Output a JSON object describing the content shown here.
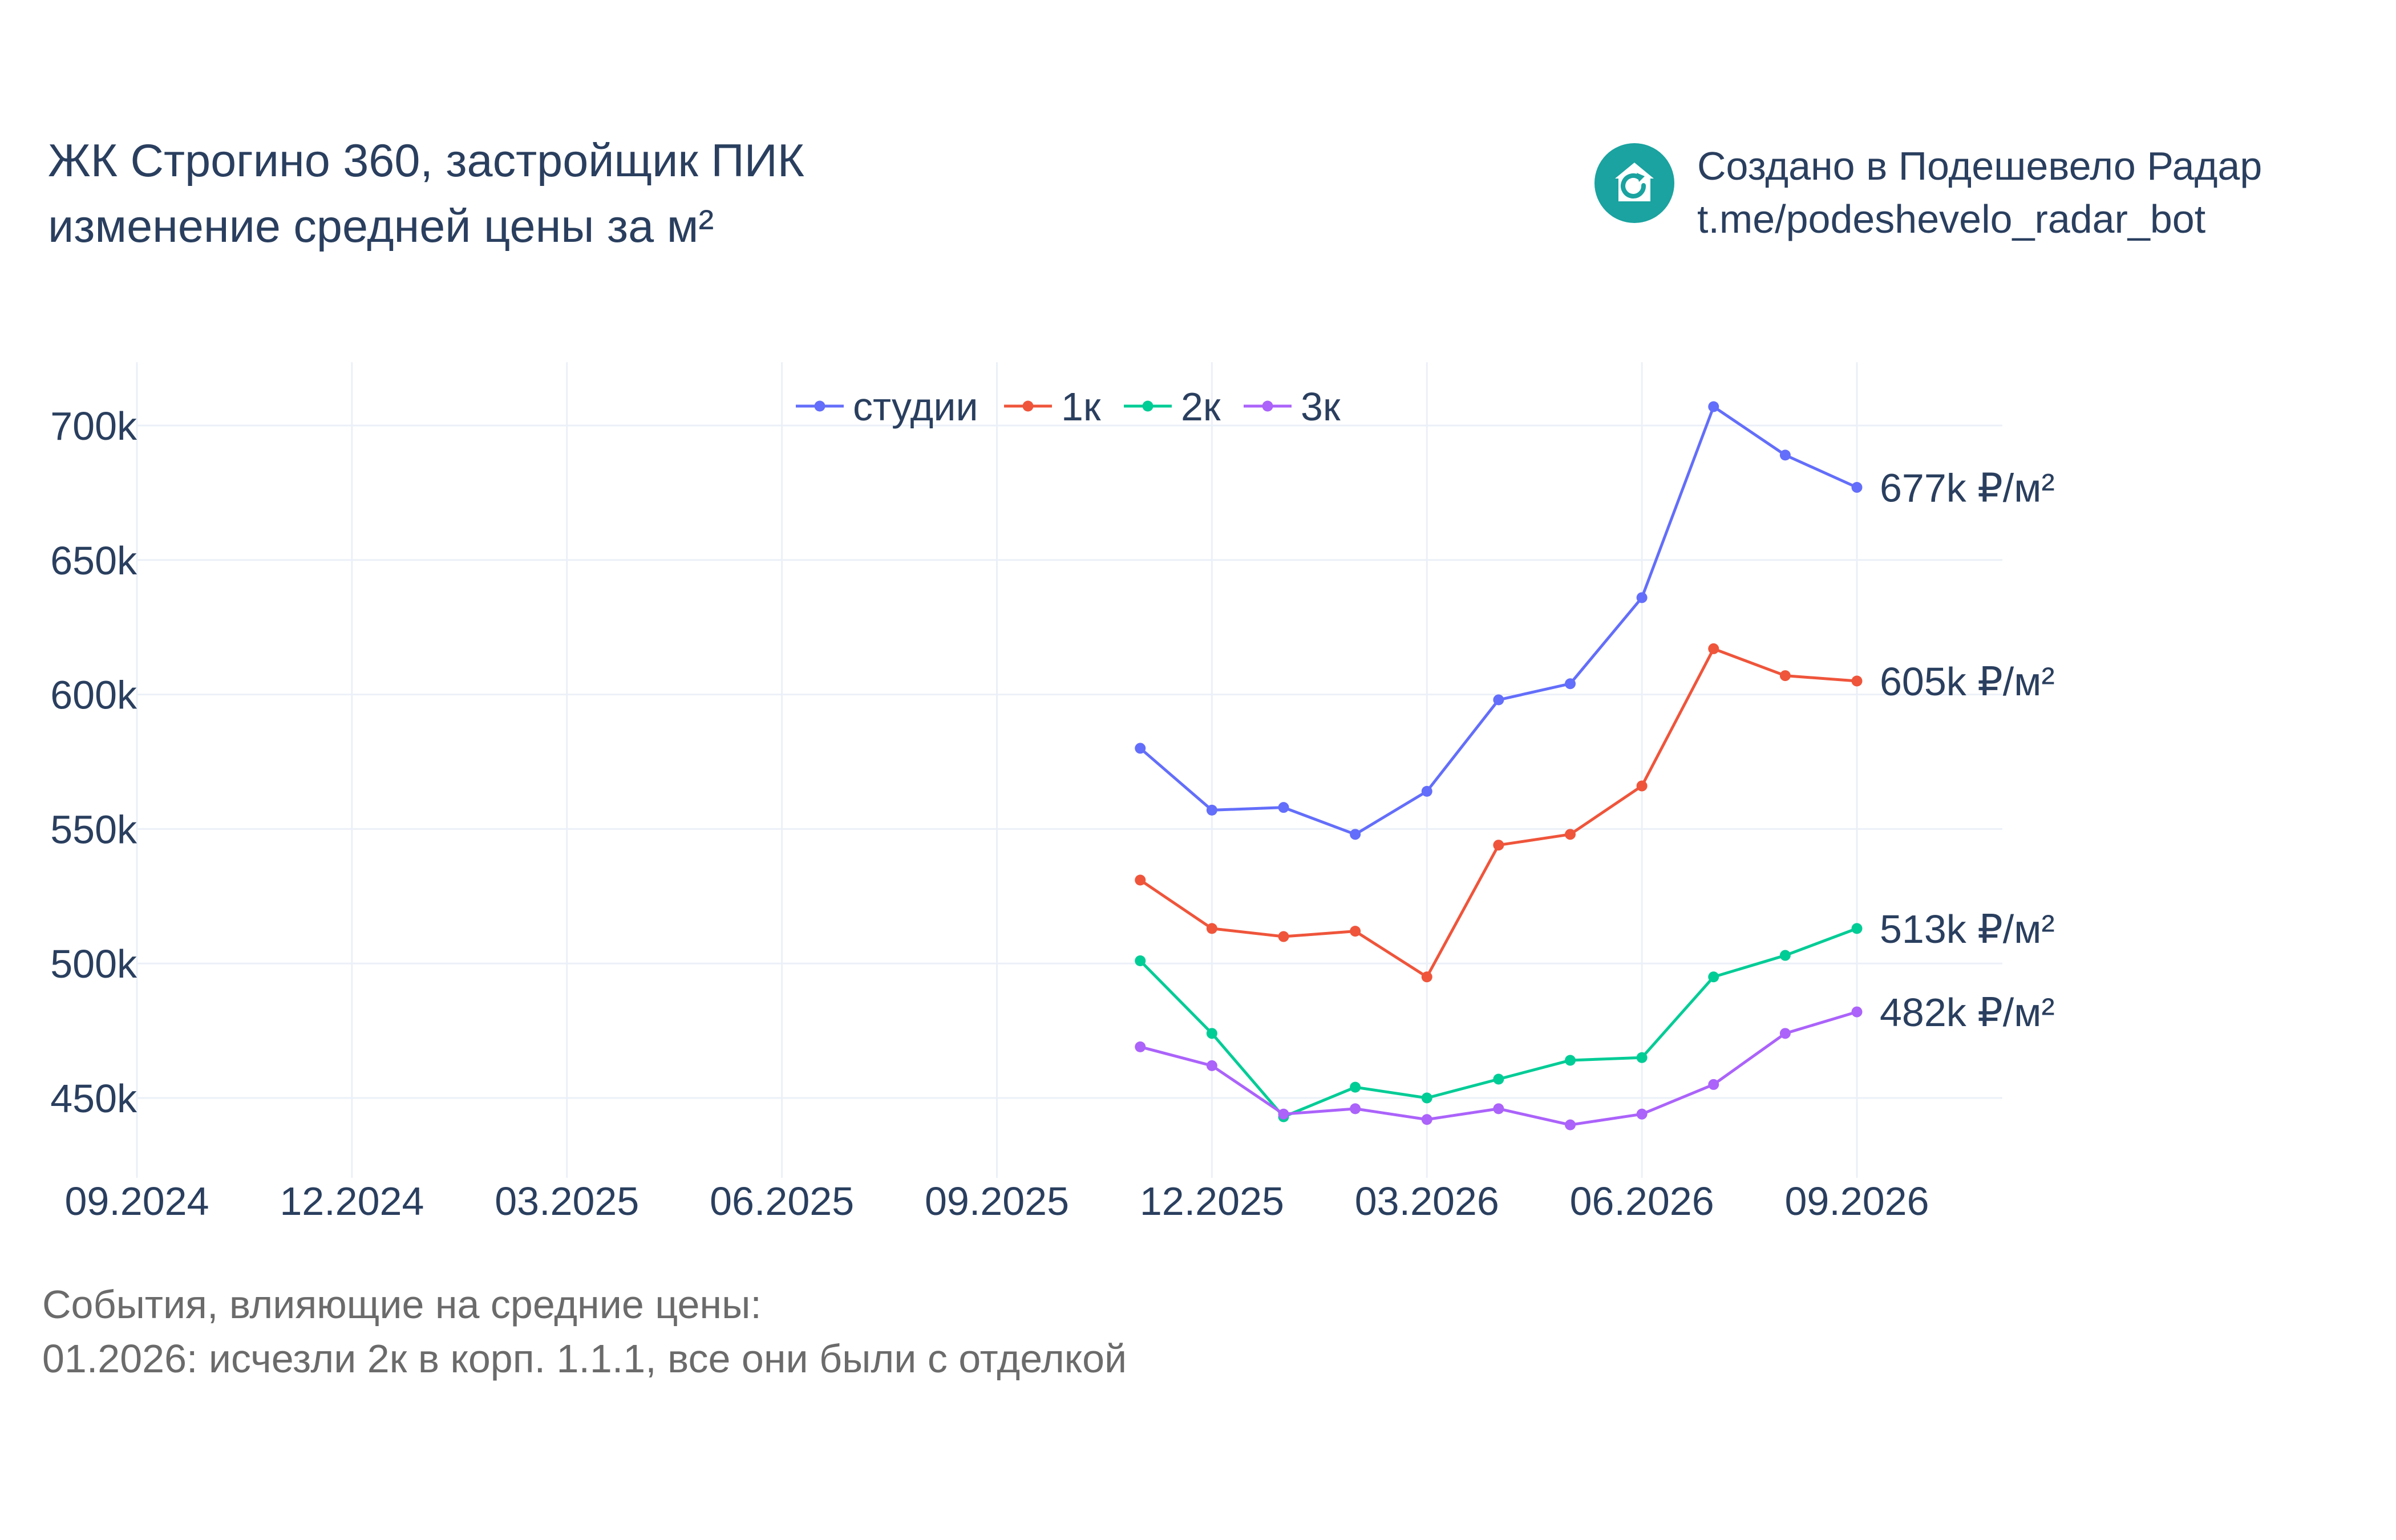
{
  "title": {
    "line1": "ЖК Строгино 360, застройщик ПИК",
    "line2": "изменение средней цены за м²"
  },
  "credit": {
    "logo_icon": "house-refresh-icon",
    "logo_color": "#1aa3a0",
    "line1": "Создано в Подешевело Радар",
    "line2": "t.me/podeshevelo_radar_bot"
  },
  "notes": {
    "heading": "События, влияющие на средние цены:",
    "event": "01.2026: исчезли 2к в корп. 1.1.1, все они были с отделкой"
  },
  "chart_data": {
    "type": "line",
    "x": [
      "11.2025",
      "12.2025",
      "01.2026",
      "02.2026",
      "03.2026",
      "04.2026",
      "05.2026",
      "06.2026",
      "07.2026",
      "08.2026",
      "09.2026"
    ],
    "x_ticks": [
      "09.2024",
      "12.2024",
      "03.2025",
      "06.2025",
      "09.2025",
      "12.2025",
      "03.2026",
      "06.2026",
      "09.2026"
    ],
    "x_range": [
      "09.2024",
      "10.2026"
    ],
    "y_ticks": [
      450000,
      500000,
      550000,
      600000,
      650000,
      700000
    ],
    "y_tick_labels": [
      "450k",
      "500k",
      "550k",
      "600k",
      "650k",
      "700k"
    ],
    "ylim": [
      425000,
      725000
    ],
    "grid": true,
    "legend_position": "top-center",
    "series": [
      {
        "name": "студии",
        "color": "#636efa",
        "values": [
          580000,
          557000,
          558000,
          548000,
          564000,
          598000,
          604000,
          636000,
          707000,
          689000,
          677000
        ],
        "end_label": "677k ₽/м²"
      },
      {
        "name": "1к",
        "color": "#ef553b",
        "values": [
          531000,
          513000,
          510000,
          512000,
          495000,
          544000,
          548000,
          566000,
          617000,
          607000,
          605000
        ],
        "end_label": "605k ₽/м²"
      },
      {
        "name": "2к",
        "color": "#00cc96",
        "values": [
          501000,
          474000,
          443000,
          454000,
          450000,
          457000,
          464000,
          465000,
          495000,
          503000,
          513000
        ],
        "end_label": "513k ₽/м²"
      },
      {
        "name": "3к",
        "color": "#ab63fa",
        "values": [
          469000,
          462000,
          444000,
          446000,
          442000,
          446000,
          440000,
          444000,
          455000,
          474000,
          482000
        ],
        "end_label": "482k ₽/м²"
      }
    ]
  }
}
